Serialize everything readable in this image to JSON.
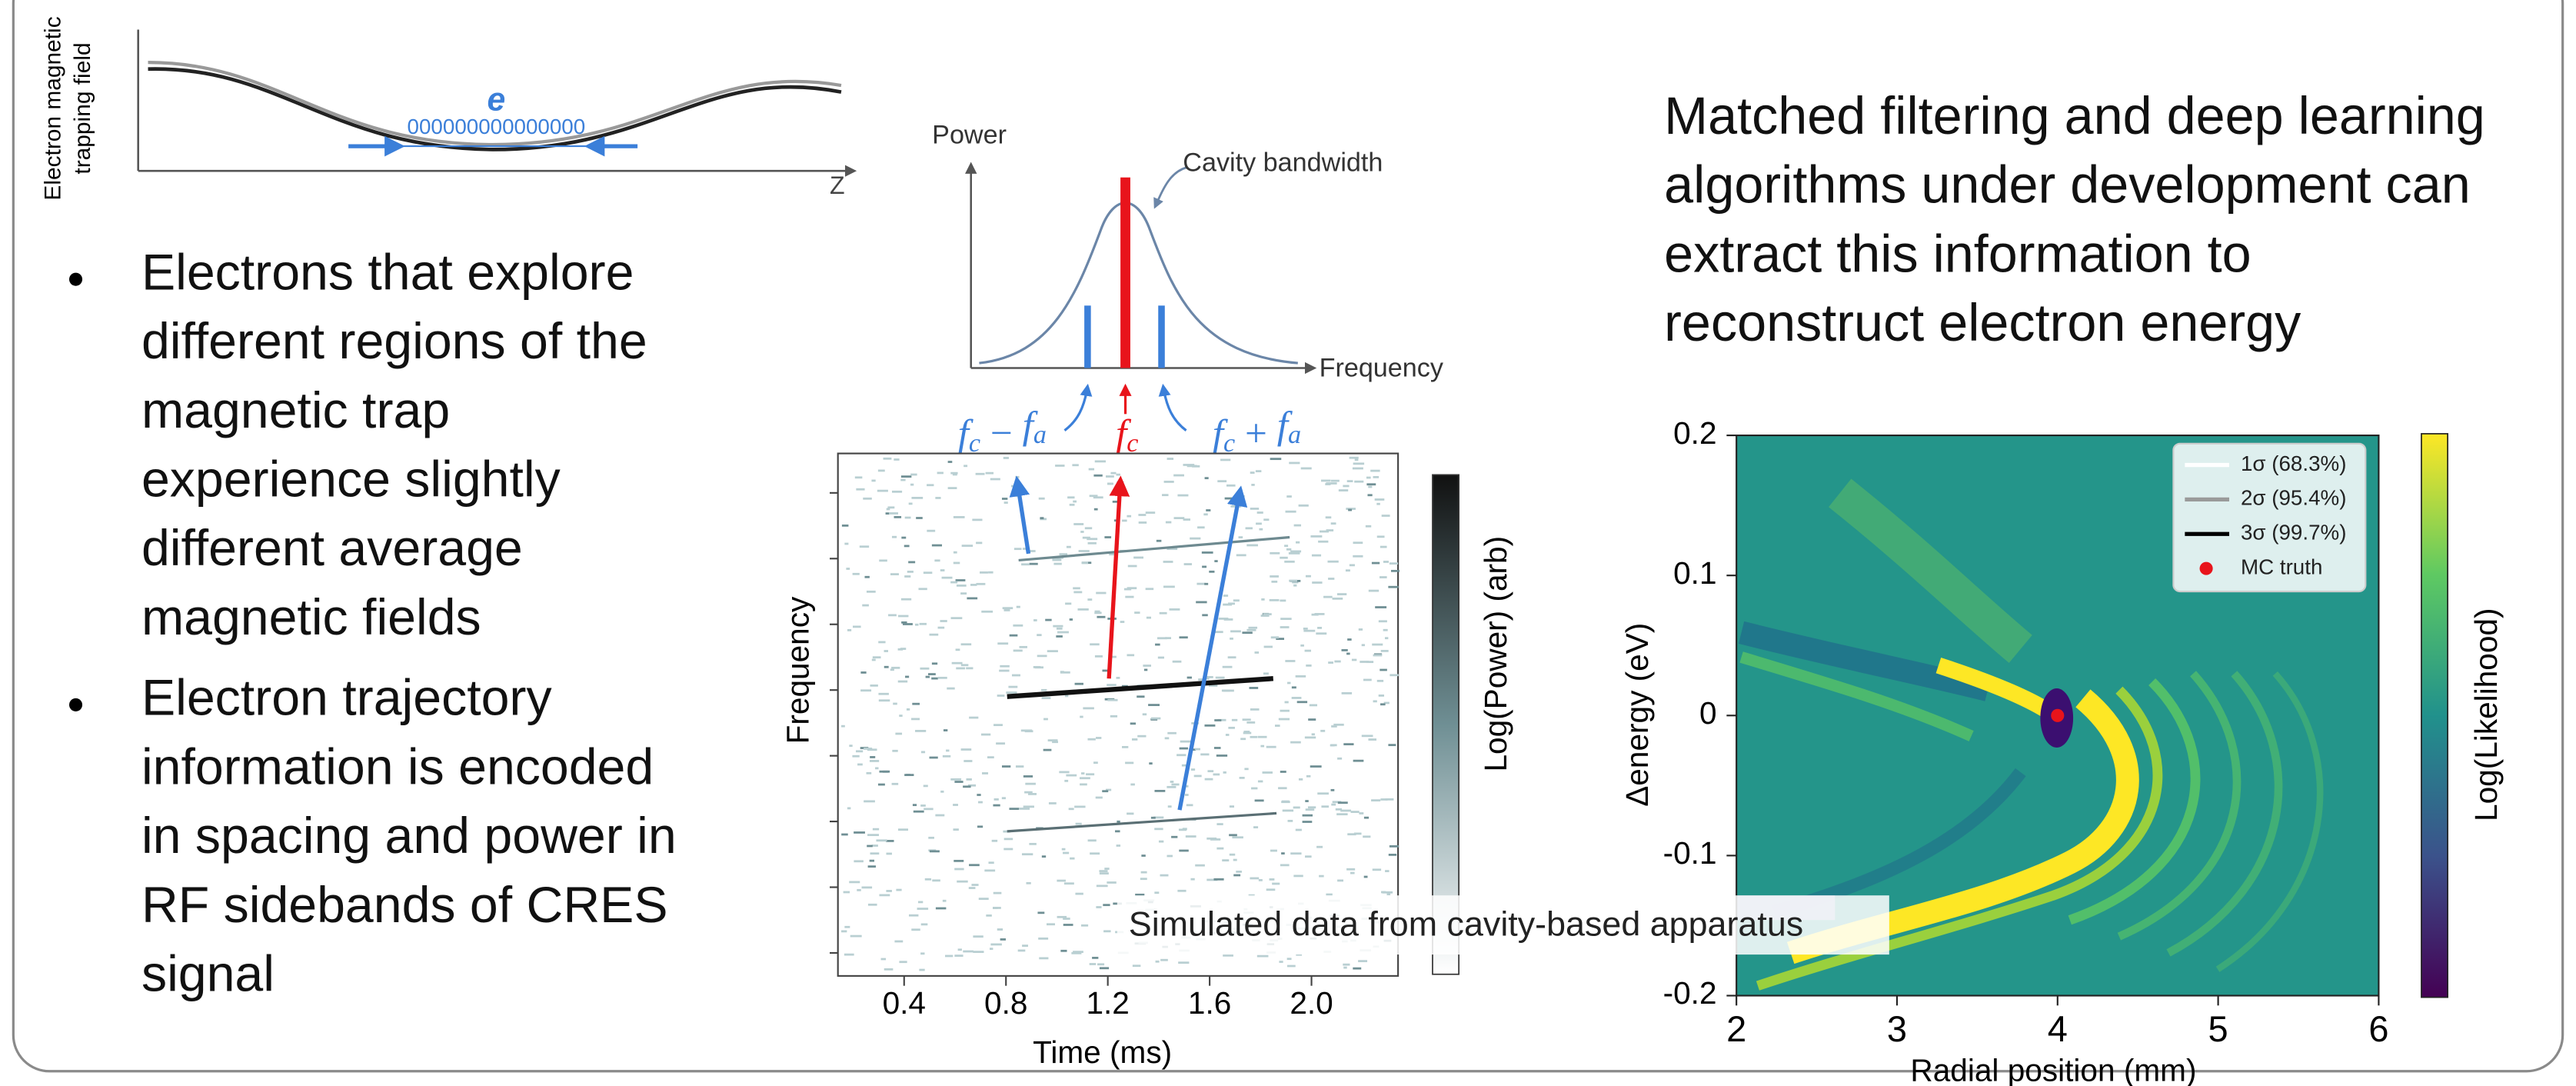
{
  "trap_figure": {
    "y_label_lines": [
      "Electron magnetic",
      "trapping field"
    ],
    "axis_label": "Z",
    "particle_label": "e",
    "orbit": "000000000000000"
  },
  "bullets": [
    {
      "lines": [
        "Electrons that explore",
        "different regions of the",
        "magnetic trap",
        "experience slightly",
        "different average",
        "magnetic fields"
      ]
    },
    {
      "lines": [
        "Electron trajectory",
        "information is encoded",
        "in spacing and power in",
        "RF sidebands of CRES",
        "signal"
      ]
    }
  ],
  "spectrum_figure": {
    "y_label": "Power",
    "x_label": "Frequency",
    "peak_label": "Cavity bandwidth",
    "sideband_labels": [
      [
        "f",
        "c",
        " − ",
        "f",
        "a"
      ],
      [
        "f",
        "c"
      ],
      [
        "f",
        "c",
        " + ",
        "f",
        "a"
      ]
    ]
  },
  "spectrogram": {
    "y_label": "Frequency",
    "x_label": "Time (ms)",
    "colorbar_label": "Log(Power) (arb)",
    "xlim": [
      0.14,
      2.34
    ],
    "xticks": [
      0.4,
      0.8,
      1.2,
      1.6,
      {
        "value": 2,
        "label": "2.0"
      }
    ],
    "caption": "Simulated data from cavity-based apparatus"
  },
  "right_text": {
    "lines": [
      "Matched filtering and deep learning",
      "algorithms under development can",
      "extract this information to",
      "reconstruct electron energy"
    ]
  },
  "likelihood_plot": {
    "x_label": "Radial position (mm)",
    "y_label": "Δenergy (eV)",
    "colorbar_label": "Log(Likelihood)",
    "xlim": [
      2,
      6
    ],
    "xticks": [
      2,
      3,
      4,
      5,
      6
    ],
    "ylim": [
      -0.2,
      0.2
    ],
    "yticks": [
      -0.2,
      -0.1,
      0,
      0.1,
      0.2
    ],
    "legend": [
      {
        "name": "1σ (68.3%)",
        "color": "#ffffff"
      },
      {
        "name": "2σ (95.4%)",
        "color": "#9a9a9a"
      },
      {
        "name": "3σ (99.7%)",
        "color": "#000000"
      },
      {
        "name": "MC truth",
        "color": "#e8141b"
      }
    ],
    "truth": {
      "x": 4,
      "y": 0
    }
  }
}
